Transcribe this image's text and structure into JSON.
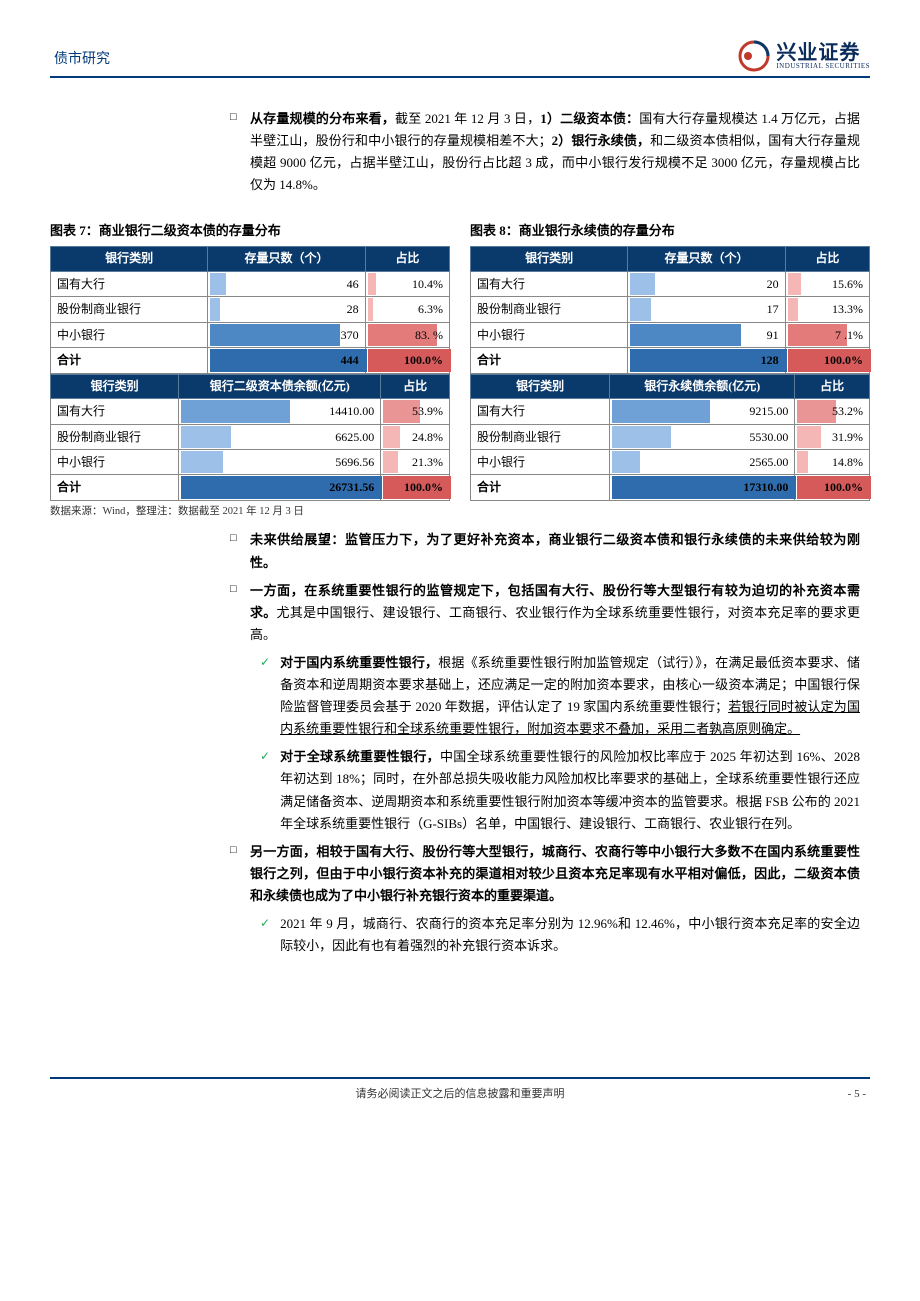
{
  "header": {
    "section": "债市研究"
  },
  "logo": {
    "cn": "兴业证券",
    "en": "INDUSTRIAL SECURITIES"
  },
  "para1": {
    "lead": "从存量规模的分布来看，",
    "rest1": "截至 2021 年 12 月 3 日，",
    "b1": "1）二级资本债：",
    "r1": "国有大行存量规模达 1.4 万亿元，占据半壁江山，股份行和中小银行的存量规模相差不大；",
    "b2": "2）银行永续债，",
    "r2": "和二级资本债相似，国有大行存量规模超 9000 亿元，占据半壁江山，股份行占比超 3 成，而中小银行发行规模不足 3000 亿元，存量规模占比仅为 14.8%。"
  },
  "tbl7": {
    "caption": "图表 7：商业银行二级资本债的存量分布",
    "cols_a": [
      "银行类别",
      "存量只数（个）",
      "占比"
    ],
    "rows_a": [
      {
        "cat": "国有大行",
        "count": "46",
        "pct": "10.4%",
        "bar_count": 10,
        "bar_pct": 10,
        "bar_color": "#9cc0e8",
        "pct_color": "#f5b6b6"
      },
      {
        "cat": "股份制商业银行",
        "count": "28",
        "pct": "6.3%",
        "bar_count": 6,
        "bar_pct": 6,
        "bar_color": "#9cc0e8",
        "pct_color": "#f5b6b6"
      },
      {
        "cat": "中小银行",
        "count": "370",
        "pct": "83. %",
        "bar_count": 83,
        "bar_pct": 83,
        "bar_color": "#4d87c4",
        "pct_color": "#e37b7b"
      },
      {
        "cat": "合计",
        "count": "444",
        "pct": "100.0%",
        "bar_count": 100,
        "bar_pct": 100,
        "total": true,
        "bar_color": "#2e6cae",
        "pct_color": "#d65a5a"
      }
    ],
    "cols_b": [
      "银行类别",
      "银行二级资本债余额(亿元)",
      "占比"
    ],
    "rows_b": [
      {
        "cat": "国有大行",
        "count": "14410.00",
        "pct": "53.9%",
        "bar_count": 54,
        "bar_pct": 54,
        "bar_color": "#6fa0d6",
        "pct_color": "#ea9595"
      },
      {
        "cat": "股份制商业银行",
        "count": "6625.00",
        "pct": "24.8%",
        "bar_count": 25,
        "bar_pct": 25,
        "bar_color": "#9cc0e8",
        "pct_color": "#f5b6b6"
      },
      {
        "cat": "中小银行",
        "count": "5696.56",
        "pct": "21.3%",
        "bar_count": 21,
        "bar_pct": 21,
        "bar_color": "#9cc0e8",
        "pct_color": "#f5b6b6"
      },
      {
        "cat": "合计",
        "count": "26731.56",
        "pct": "100.0%",
        "bar_count": 100,
        "bar_pct": 100,
        "total": true,
        "bar_color": "#2e6cae",
        "pct_color": "#d65a5a"
      }
    ]
  },
  "tbl8": {
    "caption": "图表 8：商业银行永续债的存量分布",
    "cols_a": [
      "银行类别",
      "存量只数（个）",
      "占比"
    ],
    "rows_a": [
      {
        "cat": "国有大行",
        "count": "20",
        "pct": "15.6%",
        "bar_count": 16,
        "bar_pct": 16,
        "bar_color": "#9cc0e8",
        "pct_color": "#f5b6b6"
      },
      {
        "cat": "股份制商业银行",
        "count": "17",
        "pct": "13.3%",
        "bar_count": 13,
        "bar_pct": 13,
        "bar_color": "#9cc0e8",
        "pct_color": "#f5b6b6"
      },
      {
        "cat": "中小银行",
        "count": "91",
        "pct": "7 .1%",
        "bar_count": 71,
        "bar_pct": 71,
        "bar_color": "#4d87c4",
        "pct_color": "#e37b7b"
      },
      {
        "cat": "合计",
        "count": "128",
        "pct": "100.0%",
        "bar_count": 100,
        "bar_pct": 100,
        "total": true,
        "bar_color": "#2e6cae",
        "pct_color": "#d65a5a"
      }
    ],
    "cols_b": [
      "银行类别",
      "银行永续债余额(亿元)",
      "占比"
    ],
    "rows_b": [
      {
        "cat": "国有大行",
        "count": "9215.00",
        "pct": "53.2%",
        "bar_count": 53,
        "bar_pct": 53,
        "bar_color": "#6fa0d6",
        "pct_color": "#ea9595"
      },
      {
        "cat": "股份制商业银行",
        "count": "5530.00",
        "pct": "31.9%",
        "bar_count": 32,
        "bar_pct": 32,
        "bar_color": "#9cc0e8",
        "pct_color": "#f5b6b6"
      },
      {
        "cat": "中小银行",
        "count": "2565.00",
        "pct": "14.8%",
        "bar_count": 15,
        "bar_pct": 15,
        "bar_color": "#9cc0e8",
        "pct_color": "#f5b6b6"
      },
      {
        "cat": "合计",
        "count": "17310.00",
        "pct": "100.0%",
        "bar_count": 100,
        "bar_pct": 100,
        "total": true,
        "bar_color": "#2e6cae",
        "pct_color": "#d65a5a"
      }
    ]
  },
  "source_note": "数据来源：Wind，整理注：数据截至 2021 年 12 月 3 日",
  "para2": "未来供给展望：监管压力下，为了更好补充资本，商业银行二级资本债和银行永续债的未来供给较为刚性。",
  "para3": {
    "bold": "一方面，在系统重要性银行的监管规定下，包括国有大行、股份行等大型银行有较为迫切的补充资本需求。",
    "rest": "尤其是中国银行、建设银行、工商银行、农业银行作为全球系统重要性银行，对资本充足率的要求更高。"
  },
  "check1": {
    "bold": "对于国内系统重要性银行，",
    "pre": "根据《系统重要性银行附加监管规定（试行）》，在满足最低资本要求、储备资本和逆周期资本要求基础上，还应满足一定的附加资本要求，由核心一级资本满足；中国银行保险监督管理委员会基于 2020 年数据，评估认定了 19 家国内系统重要性银行；",
    "under": "若银行同时被认定为国内系统重要性银行和全球系统重要性银行，附加资本要求不叠加，采用二者孰高原则确定。"
  },
  "check2": {
    "bold": "对于全球系统重要性银行，",
    "rest": "中国全球系统重要性银行的风险加权比率应于 2025 年初达到 16%、2028 年初达到 18%；同时，在外部总损失吸收能力风险加权比率要求的基础上，全球系统重要性银行还应满足储备资本、逆周期资本和系统重要性银行附加资本等缓冲资本的监管要求。根据 FSB 公布的 2021 年全球系统重要性银行（G-SIBs）名单，中国银行、建设银行、工商银行、农业银行在列。"
  },
  "para4": "另一方面，相较于国有大行、股份行等大型银行，城商行、农商行等中小银行大多数不在国内系统重要性银行之列，但由于中小银行资本补充的渠道相对较少且资本充足率现有水平相对偏低，因此，二级资本债和永续债也成为了中小银行补充银行资本的重要渠道。",
  "check3": "2021 年 9 月，城商行、农商行的资本充足率分别为 12.96%和 12.46%，中小银行资本充足率的安全边际较小，因此有也有着强烈的补充银行资本诉求。",
  "footer": {
    "disclaimer": "请务必阅读正文之后的信息披露和重要声明",
    "page": "- 5 -"
  }
}
